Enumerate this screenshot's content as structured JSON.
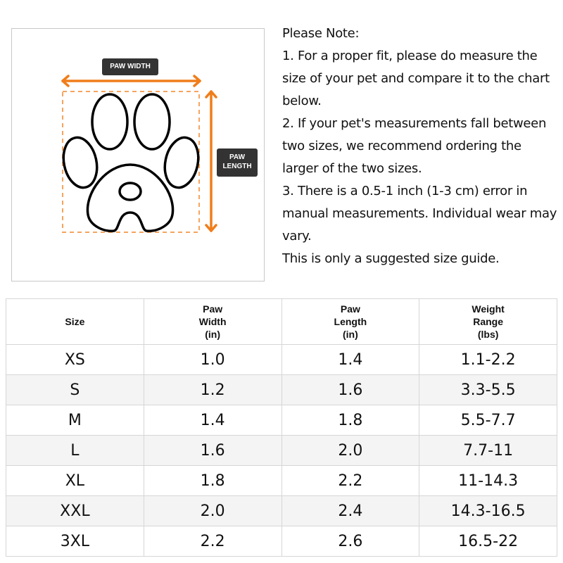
{
  "diagram": {
    "width_label": "PAW WIDTH",
    "length_label_line1": "PAW",
    "length_label_line2": "LENGTH",
    "accent_color": "#f07d1a"
  },
  "notes": [
    "Please Note:",
    "1. For a proper fit, please do measure the size of your pet and compare it to the chart below.",
    "2. If your pet's measurements fall between two sizes, we recommend ordering the larger of the two sizes.",
    "3. There is a 0.5-1 inch (1-3 cm) error in manual measurements. Individual wear may vary.",
    "This is only a suggested size guide."
  ],
  "table": {
    "headers": [
      [
        "Size"
      ],
      [
        "Paw",
        "Width",
        "(in)"
      ],
      [
        "Paw",
        "Length",
        "(in)"
      ],
      [
        "Weight",
        "Range",
        "(lbs)"
      ]
    ],
    "rows": [
      [
        "XS",
        "1.0",
        "1.4",
        "1.1-2.2"
      ],
      [
        "S",
        "1.2",
        "1.6",
        "3.3-5.5"
      ],
      [
        "M",
        "1.4",
        "1.8",
        "5.5-7.7"
      ],
      [
        "L",
        "1.6",
        "2.0",
        "7.7-11"
      ],
      [
        "XL",
        "1.8",
        "2.2",
        "11-14.3"
      ],
      [
        "XXL",
        "2.0",
        "2.4",
        "14.3-16.5"
      ],
      [
        "3XL",
        "2.2",
        "2.6",
        "16.5-22"
      ]
    ]
  }
}
